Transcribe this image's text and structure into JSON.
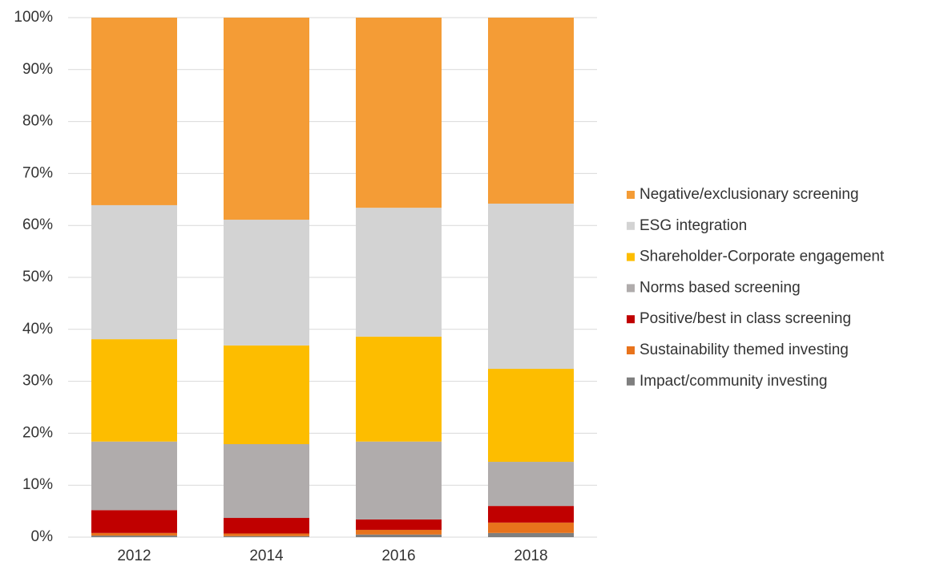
{
  "chart_data": {
    "type": "stacked_bar",
    "categories": [
      "2012",
      "2014",
      "2016",
      "2018"
    ],
    "series": [
      {
        "name": "Impact/community investing",
        "color": "#7f7f7f",
        "values": [
          0.3,
          0.2,
          0.5,
          0.8
        ]
      },
      {
        "name": "Sustainability themed investing",
        "color": "#e8731c",
        "values": [
          0.5,
          0.5,
          0.9,
          2.0
        ]
      },
      {
        "name": "Positive/best in class screening",
        "color": "#c00000",
        "values": [
          4.4,
          3.0,
          2.0,
          3.2
        ]
      },
      {
        "name": "Norms based screening",
        "color": "#b0acac",
        "values": [
          13.2,
          14.2,
          15.0,
          8.5
        ]
      },
      {
        "name": "Shareholder-Corporate engagement",
        "color": "#fdbd00",
        "values": [
          19.7,
          19.0,
          20.2,
          17.9
        ]
      },
      {
        "name": "ESG integration",
        "color": "#d3d3d3",
        "values": [
          25.8,
          24.2,
          24.8,
          31.8
        ]
      },
      {
        "name": "Negative/exclusionary screening",
        "color": "#f49c36",
        "values": [
          36.1,
          38.9,
          36.6,
          35.8
        ]
      }
    ],
    "ylim": [
      0,
      100
    ],
    "yticks": [
      {
        "value": 0,
        "label": "0%"
      },
      {
        "value": 10,
        "label": "10%"
      },
      {
        "value": 20,
        "label": "20%"
      },
      {
        "value": 30,
        "label": "30%"
      },
      {
        "value": 40,
        "label": "40%"
      },
      {
        "value": 50,
        "label": "50%"
      },
      {
        "value": 60,
        "label": "60%"
      },
      {
        "value": 70,
        "label": "70%"
      },
      {
        "value": 80,
        "label": "80%"
      },
      {
        "value": 90,
        "label": "90%"
      },
      {
        "value": 100,
        "label": "100%"
      }
    ],
    "grid": true,
    "legend": "right"
  }
}
